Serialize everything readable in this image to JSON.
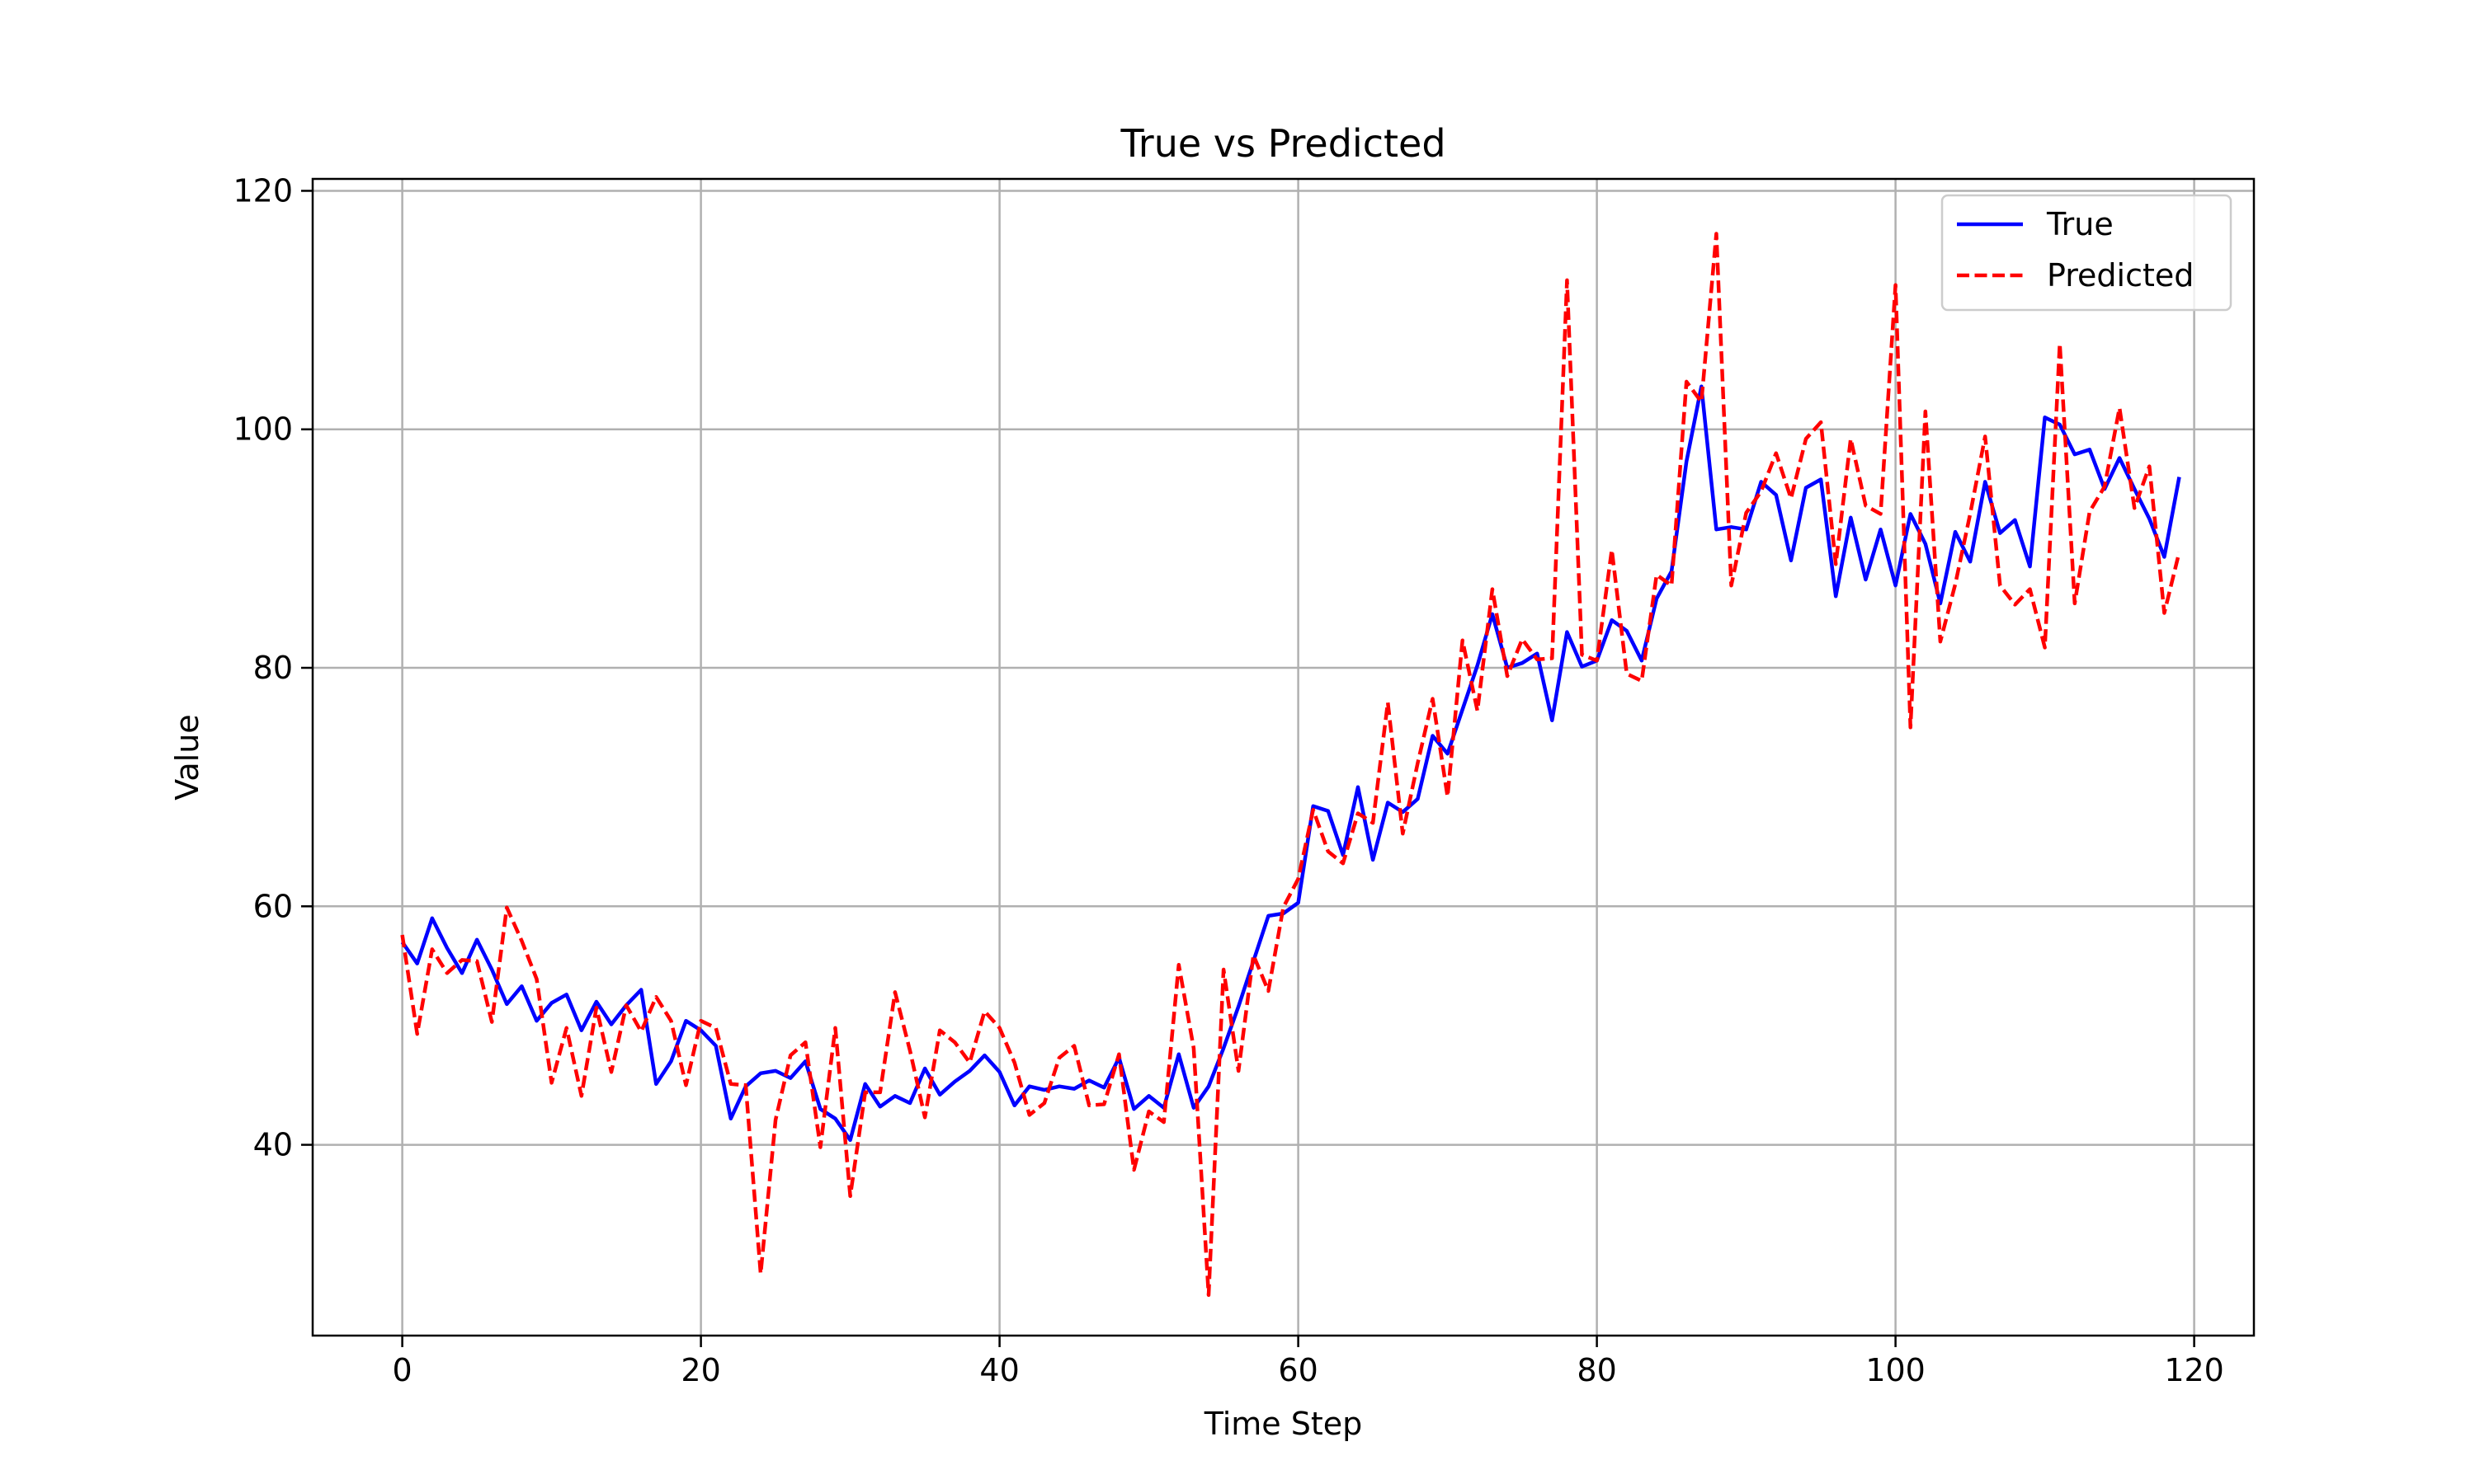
{
  "chart_data": {
    "type": "line",
    "title": "True vs Predicted",
    "xlabel": "Time Step",
    "ylabel": "Value",
    "xlim": [
      -6,
      124
    ],
    "ylim": [
      24,
      121
    ],
    "xticks": [
      0,
      20,
      40,
      60,
      80,
      100,
      120
    ],
    "yticks": [
      40,
      60,
      80,
      100,
      120
    ],
    "grid": true,
    "legend_position": "top-right",
    "x": [
      0,
      1,
      2,
      3,
      4,
      5,
      6,
      7,
      8,
      9,
      10,
      11,
      12,
      13,
      14,
      15,
      16,
      17,
      18,
      19,
      20,
      21,
      22,
      23,
      24,
      25,
      26,
      27,
      28,
      29,
      30,
      31,
      32,
      33,
      34,
      35,
      36,
      37,
      38,
      39,
      40,
      41,
      42,
      43,
      44,
      45,
      46,
      47,
      48,
      49,
      50,
      51,
      52,
      53,
      54,
      55,
      56,
      57,
      58,
      59,
      60,
      61,
      62,
      63,
      64,
      65,
      66,
      67,
      68,
      69,
      70,
      71,
      72,
      73,
      74,
      75,
      76,
      77,
      78,
      79,
      80,
      81,
      82,
      83,
      84,
      85,
      86,
      87,
      88,
      89,
      90,
      91,
      92,
      93,
      94,
      95,
      96,
      97,
      98,
      99,
      100,
      101,
      102,
      103,
      104,
      105,
      106,
      107,
      108,
      109,
      110,
      111,
      112,
      113,
      114,
      115,
      116,
      117,
      118,
      119
    ],
    "series": [
      {
        "name": "True",
        "color": "#0000ff",
        "style": "solid",
        "values": [
          57.0,
          55.2,
          59.0,
          56.5,
          54.4,
          57.2,
          54.7,
          51.8,
          53.3,
          50.4,
          51.9,
          52.6,
          49.6,
          52.0,
          50.1,
          51.7,
          53.0,
          45.1,
          47.0,
          50.4,
          49.6,
          48.3,
          42.2,
          44.9,
          46.0,
          46.2,
          45.6,
          47.0,
          43.0,
          42.2,
          40.4,
          45.1,
          43.2,
          44.1,
          43.5,
          46.4,
          44.2,
          45.3,
          46.2,
          47.5,
          46.1,
          43.3,
          44.9,
          44.6,
          44.9,
          44.7,
          45.4,
          44.8,
          47.3,
          43.0,
          44.1,
          43.1,
          47.6,
          43.1,
          44.9,
          48.1,
          51.6,
          55.4,
          59.2,
          59.4,
          60.3,
          68.4,
          68.0,
          64.3,
          70.0,
          63.9,
          68.7,
          67.9,
          69.0,
          74.3,
          72.8,
          76.5,
          80.2,
          84.5,
          80.0,
          80.4,
          81.2,
          75.6,
          83.0,
          80.1,
          80.6,
          84.0,
          83.1,
          80.6,
          85.8,
          88.1,
          97.3,
          103.6,
          91.6,
          91.8,
          91.6,
          95.6,
          94.5,
          89.0,
          95.1,
          95.8,
          86.0,
          92.6,
          87.4,
          91.6,
          86.9,
          92.9,
          90.4,
          85.4,
          91.4,
          88.9,
          95.6,
          91.3,
          92.4,
          88.5,
          101.0,
          100.4,
          97.9,
          98.3,
          95.0,
          97.6,
          95.0,
          92.5,
          89.3,
          96.0
        ]
      },
      {
        "name": "Predicted",
        "color": "#ff0000",
        "style": "dashed",
        "values": [
          57.6,
          49.3,
          56.4,
          54.4,
          55.5,
          55.4,
          50.3,
          59.9,
          57.1,
          53.9,
          45.2,
          49.8,
          44.1,
          51.5,
          46.1,
          51.7,
          49.5,
          52.4,
          50.4,
          45.0,
          50.4,
          49.8,
          45.1,
          45.0,
          29.2,
          42.1,
          47.5,
          48.6,
          39.8,
          49.8,
          35.7,
          44.4,
          44.4,
          52.8,
          47.9,
          42.3,
          49.6,
          48.6,
          46.9,
          51.2,
          49.8,
          46.9,
          42.5,
          43.5,
          47.3,
          48.3,
          43.3,
          43.4,
          47.6,
          37.9,
          42.8,
          41.9,
          55.1,
          48.1,
          27.4,
          54.7,
          46.2,
          55.9,
          52.9,
          59.9,
          62.3,
          68.1,
          64.6,
          63.6,
          67.8,
          67.0,
          77.1,
          66.1,
          72.0,
          77.4,
          69.2,
          82.3,
          76.4,
          86.6,
          79.3,
          82.4,
          80.7,
          80.8,
          112.5,
          81.1,
          80.6,
          89.9,
          79.5,
          78.9,
          87.8,
          86.9,
          104.0,
          102.3,
          116.4,
          86.9,
          93.0,
          94.8,
          98.0,
          94.2,
          99.2,
          100.6,
          88.7,
          99.2,
          93.6,
          92.9,
          112.1,
          75.0,
          101.5,
          82.2,
          87.0,
          92.9,
          99.4,
          86.9,
          85.3,
          86.6,
          81.7,
          107.2,
          85.4,
          93.1,
          95.2,
          101.8,
          93.4,
          96.9,
          84.6,
          89.7
        ]
      }
    ]
  }
}
